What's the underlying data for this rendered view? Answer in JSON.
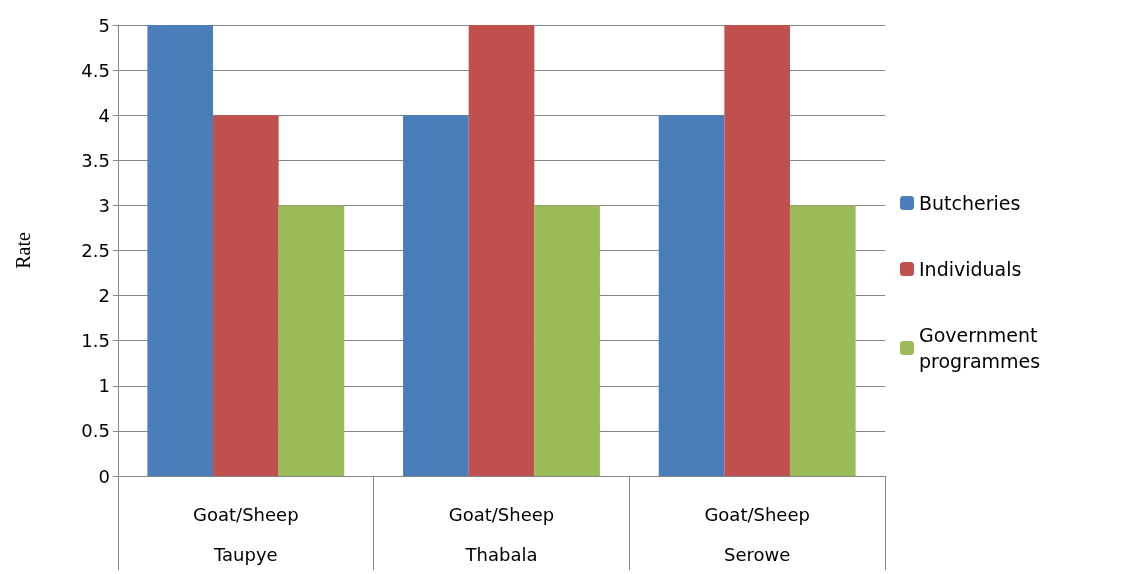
{
  "chart_data": {
    "type": "bar",
    "ylabel": "Rate",
    "categories": [
      "Goat/Sheep\nTaupye",
      "Goat/Sheep\nThabala",
      "Goat/Sheep\nSerowe"
    ],
    "series": [
      {
        "name": "Butcheries",
        "color": "#4a7ebb",
        "values": [
          5,
          4,
          4
        ]
      },
      {
        "name": "Individuals",
        "color": "#c0504d",
        "values": [
          4,
          5,
          5
        ]
      },
      {
        "name": "Government programmes",
        "color": "#9bbb59",
        "values": [
          3,
          3,
          3
        ]
      }
    ],
    "ylim": [
      0,
      5
    ],
    "yticks": [
      0,
      0.5,
      1,
      1.5,
      2,
      2.5,
      3,
      3.5,
      4,
      4.5,
      5
    ],
    "grid": "y",
    "legend": "right"
  }
}
